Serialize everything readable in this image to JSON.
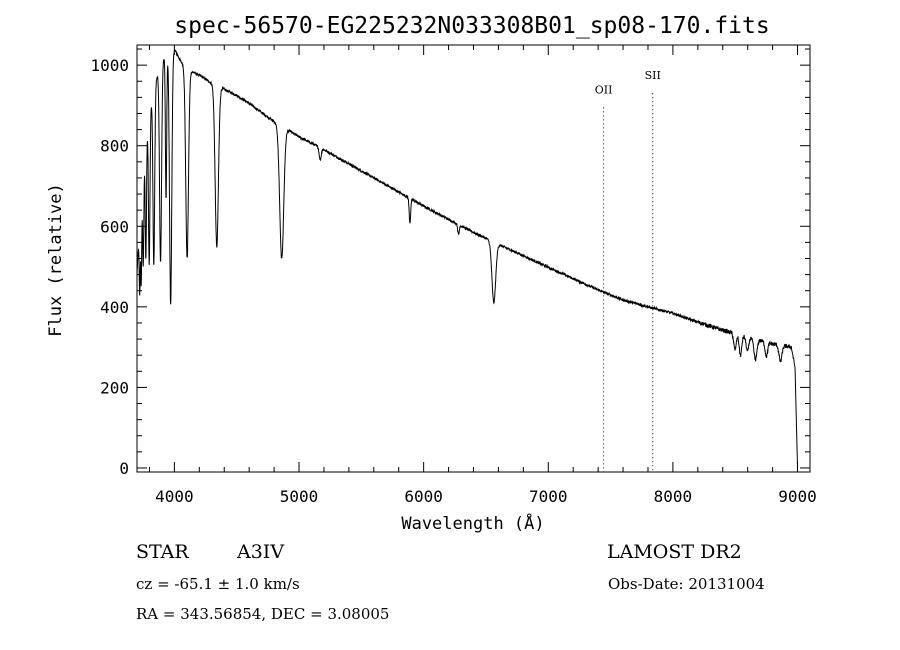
{
  "chart_data": {
    "type": "line",
    "title": "spec-56570-EG225232N033308B01_sp08-170.fits",
    "xlabel": "Wavelength (Å)",
    "ylabel": "Flux (relative)",
    "xlim": [
      3700,
      9100
    ],
    "ylim": [
      -10,
      1050
    ],
    "grid": false,
    "x_ticks": [
      4000,
      5000,
      6000,
      7000,
      8000,
      9000
    ],
    "y_ticks": [
      0,
      200,
      400,
      600,
      800,
      1000
    ],
    "series": [
      {
        "name": "spectrum",
        "continuum": {
          "x": [
            3700,
            3720,
            3750,
            3800,
            3850,
            3900,
            3950,
            4000,
            4050,
            4100,
            4200,
            4300,
            4400,
            4500,
            4600,
            4800,
            5000,
            5200,
            5400,
            5600,
            5800,
            6000,
            6200,
            6400,
            6600,
            6800,
            7000,
            7200,
            7400,
            7600,
            7800,
            8000,
            8200,
            8400,
            8600,
            8800,
            8950,
            8980,
            9000
          ],
          "y": [
            480,
            600,
            760,
            890,
            960,
            1010,
            1030,
            1040,
            1010,
            990,
            975,
            955,
            940,
            925,
            905,
            860,
            822,
            790,
            755,
            720,
            685,
            650,
            617,
            585,
            555,
            527,
            498,
            470,
            442,
            417,
            400,
            384,
            362,
            342,
            324,
            308,
            300,
            250,
            0
          ]
        },
        "absorption_lines": [
          {
            "x": 3722,
            "depth": 180,
            "width": 4
          },
          {
            "x": 3734,
            "depth": 220,
            "width": 4
          },
          {
            "x": 3750,
            "depth": 260,
            "width": 5
          },
          {
            "x": 3771,
            "depth": 300,
            "width": 5
          },
          {
            "x": 3798,
            "depth": 380,
            "width": 6
          },
          {
            "x": 3835,
            "depth": 440,
            "width": 7
          },
          {
            "x": 3889,
            "depth": 490,
            "width": 8
          },
          {
            "x": 3933,
            "depth": 360,
            "width": 5
          },
          {
            "x": 3970,
            "depth": 630,
            "width": 9
          },
          {
            "x": 4102,
            "depth": 470,
            "width": 11
          },
          {
            "x": 4340,
            "depth": 400,
            "width": 13
          },
          {
            "x": 4861,
            "depth": 330,
            "width": 16
          },
          {
            "x": 5170,
            "depth": 30,
            "width": 8
          },
          {
            "x": 5890,
            "depth": 60,
            "width": 6
          },
          {
            "x": 6280,
            "depth": 25,
            "width": 6
          },
          {
            "x": 6563,
            "depth": 150,
            "width": 15
          },
          {
            "x": 8498,
            "depth": 40,
            "width": 10
          },
          {
            "x": 8542,
            "depth": 50,
            "width": 10
          },
          {
            "x": 8598,
            "depth": 35,
            "width": 10
          },
          {
            "x": 8662,
            "depth": 50,
            "width": 12
          },
          {
            "x": 8750,
            "depth": 35,
            "width": 10
          },
          {
            "x": 8863,
            "depth": 40,
            "width": 12
          }
        ]
      }
    ],
    "annotations": [
      {
        "label": "OII",
        "x": 7444,
        "label_y": 930
      },
      {
        "label": "SII",
        "x": 7838,
        "label_y": 965
      }
    ]
  },
  "info": {
    "object_type": "STAR",
    "spectral_class": "A3IV",
    "survey": "LAMOST DR2",
    "velocity": "cz = -65.1 ± 1.0 km/s",
    "obs_date": "Obs-Date: 20131004",
    "coords": "RA = 343.56854, DEC =   3.08005"
  }
}
